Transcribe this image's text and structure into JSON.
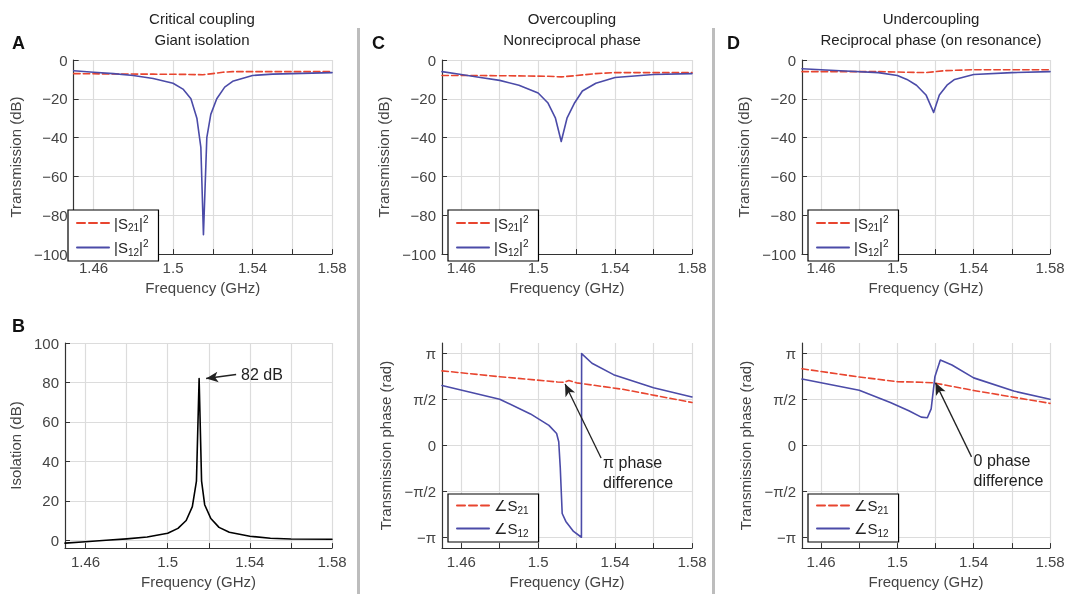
{
  "chart_data": [
    {
      "type": "line",
      "title": "Critical coupling",
      "subtitle": "Giant isolation",
      "annotations": [
        "A"
      ],
      "xlabel": "Frequency (GHz)",
      "ylabel": "Transmission (dB)",
      "xlim": [
        1.45,
        1.58
      ],
      "xticks": [
        1.46,
        {
          "value": 1.48,
          "label": null
        },
        1.5,
        {
          "value": 1.52,
          "label": null
        },
        1.54,
        {
          "value": 1.56,
          "label": null
        },
        1.58
      ],
      "ylim": [
        -100,
        0
      ],
      "yticks": [
        {
          "value": -100,
          "label": "−100"
        },
        {
          "value": -80,
          "label": "−80"
        },
        {
          "value": -60,
          "label": "−60"
        },
        {
          "value": -40,
          "label": "−40"
        },
        {
          "value": -20,
          "label": "−20"
        },
        0
      ],
      "grid": true,
      "legend": "bottom left",
      "marker": "none",
      "series": [
        {
          "name": "|S$_{21}$|$^{2}$",
          "color": "#e8452f",
          "line_style": "dashed",
          "x": [
            1.45,
            1.47,
            1.49,
            1.505,
            1.515,
            1.52,
            1.525,
            1.53,
            1.55,
            1.58
          ],
          "values": [
            -7,
            -7.2,
            -7.3,
            -7.4,
            -7.6,
            -7,
            -6.3,
            -6,
            -6,
            -6
          ]
        },
        {
          "name": "|S$_{12}$|$^{2}$",
          "color": "#4b4ba8",
          "line_style": "solid",
          "x": [
            1.45,
            1.46,
            1.47,
            1.48,
            1.49,
            1.5,
            1.505,
            1.509,
            1.512,
            1.514,
            1.5153,
            1.517,
            1.519,
            1.522,
            1.526,
            1.53,
            1.54,
            1.55,
            1.56,
            1.58
          ],
          "values": [
            -5.5,
            -6.3,
            -7,
            -8,
            -9.5,
            -12,
            -15,
            -20,
            -30,
            -45,
            -90,
            -40,
            -28,
            -20,
            -14,
            -11,
            -8,
            -7.3,
            -7,
            -6.5
          ]
        }
      ]
    },
    {
      "type": "line",
      "annotations": [
        "B",
        {
          "text": "82 dB",
          "x": 1.5153,
          "y": 82
        }
      ],
      "xlabel": "Frequency (GHz)",
      "ylabel": "Isolation (dB)",
      "xlim": [
        1.45,
        1.58
      ],
      "xticks": [
        1.46,
        {
          "value": 1.48,
          "label": null
        },
        1.5,
        {
          "value": 1.52,
          "label": null
        },
        1.54,
        {
          "value": 1.56,
          "label": null
        },
        1.58
      ],
      "ylim": [
        -4,
        100
      ],
      "yticks": [
        0,
        20,
        40,
        60,
        80,
        100
      ],
      "grid": true,
      "marker": "none",
      "series": [
        {
          "color": "#000000",
          "line_style": "solid",
          "x": [
            1.45,
            1.46,
            1.47,
            1.48,
            1.49,
            1.5,
            1.505,
            1.509,
            1.512,
            1.514,
            1.5153,
            1.5165,
            1.518,
            1.521,
            1.525,
            1.53,
            1.54,
            1.55,
            1.56,
            1.58
          ],
          "values": [
            -1.5,
            -0.8,
            0,
            0.7,
            1.6,
            3.5,
            6,
            10,
            17,
            30,
            82,
            30,
            18,
            11,
            6.5,
            4,
            2,
            1,
            0.6,
            0.5
          ]
        }
      ]
    },
    {
      "type": "line",
      "title": "Overcoupling",
      "subtitle": "Nonreciprocal phase",
      "annotations": [
        "C"
      ],
      "xlabel": "Frequency (GHz)",
      "ylabel": "Transmission (dB)",
      "xlim": [
        1.45,
        1.58
      ],
      "xticks": [
        1.46,
        {
          "value": 1.48,
          "label": null
        },
        1.5,
        {
          "value": 1.52,
          "label": null
        },
        1.54,
        {
          "value": 1.56,
          "label": null
        },
        1.58
      ],
      "ylim": [
        -100,
        0
      ],
      "yticks": [
        {
          "value": -100,
          "label": "−100"
        },
        {
          "value": -80,
          "label": "−80"
        },
        {
          "value": -60,
          "label": "−60"
        },
        {
          "value": -40,
          "label": "−40"
        },
        {
          "value": -20,
          "label": "−20"
        },
        0
      ],
      "grid": true,
      "legend": "bottom left",
      "marker": "none",
      "series": [
        {
          "name": "|S$_{21}$|$^{2}$",
          "color": "#e8452f",
          "line_style": "dashed",
          "x": [
            1.45,
            1.47,
            1.49,
            1.505,
            1.512,
            1.52,
            1.53,
            1.54,
            1.56,
            1.58
          ],
          "values": [
            -8,
            -8,
            -8.2,
            -8.4,
            -8.7,
            -8,
            -7,
            -6.5,
            -6.5,
            -6.5
          ]
        },
        {
          "name": "|S$_{12}$|$^{2}$",
          "color": "#4b4ba8",
          "line_style": "solid",
          "x": [
            1.45,
            1.46,
            1.47,
            1.48,
            1.49,
            1.5,
            1.505,
            1.509,
            1.512,
            1.515,
            1.519,
            1.523,
            1.53,
            1.54,
            1.56,
            1.58
          ],
          "values": [
            -6,
            -7.5,
            -9,
            -10.5,
            -13,
            -17,
            -22,
            -30,
            -42,
            -30,
            -22,
            -16,
            -12,
            -9,
            -7.5,
            -7
          ]
        }
      ]
    },
    {
      "type": "line",
      "annotations": [
        {
          "text": "π phase difference",
          "x": 1.514,
          "y": 2.1
        }
      ],
      "xlabel": "Frequency (GHz)",
      "ylabel": "Transmission phase (rad)",
      "xlim": [
        1.45,
        1.58
      ],
      "xticks": [
        1.46,
        {
          "value": 1.48,
          "label": null
        },
        1.5,
        {
          "value": 1.52,
          "label": null
        },
        1.54,
        {
          "value": 1.56,
          "label": null
        },
        1.58
      ],
      "ylim": [
        -3.5,
        3.5
      ],
      "yticks": [
        {
          "value": -3.1416,
          "label": "−π"
        },
        {
          "value": -1.5708,
          "label": "−π/2"
        },
        0,
        {
          "value": 1.5708,
          "label": "π/2"
        },
        {
          "value": 3.1416,
          "label": "π"
        }
      ],
      "grid": true,
      "legend": "bottom left",
      "marker": "none",
      "series": [
        {
          "name": "∠S$_{21}$",
          "color": "#e8452f",
          "line_style": "dashed",
          "x": [
            1.45,
            1.48,
            1.51,
            1.5136,
            1.516,
            1.52,
            1.544,
            1.58
          ],
          "values": [
            2.55,
            2.35,
            2.17,
            2.16,
            2.22,
            2.14,
            1.92,
            1.47
          ]
        },
        {
          "name": "∠S$_{12}$",
          "color": "#4b4ba8",
          "line_style": "solid",
          "x": [
            1.45,
            1.48,
            1.496,
            1.5056,
            1.5096,
            1.5107,
            1.5115,
            1.5125,
            1.5144,
            1.5184,
            1.5225,
            1.5226,
            1.528,
            1.5392,
            1.56,
            1.58
          ],
          "values": [
            2.05,
            1.58,
            1.08,
            0.69,
            0.41,
            0.13,
            -0.76,
            -2.32,
            -2.59,
            -2.93,
            -3.13,
            3.14,
            2.81,
            2.42,
            1.97,
            1.66
          ]
        }
      ]
    },
    {
      "type": "line",
      "title": "Undercoupling",
      "subtitle": "Reciprocal phase (on resonance)",
      "annotations": [
        "D"
      ],
      "xlabel": "Frequency (GHz)",
      "ylabel": "Transmission (dB)",
      "xlim": [
        1.45,
        1.58
      ],
      "xticks": [
        1.46,
        {
          "value": 1.48,
          "label": null
        },
        1.5,
        {
          "value": 1.52,
          "label": null
        },
        1.54,
        {
          "value": 1.56,
          "label": null
        },
        1.58
      ],
      "ylim": [
        -100,
        0
      ],
      "yticks": [
        {
          "value": -100,
          "label": "−100"
        },
        {
          "value": -80,
          "label": "−80"
        },
        {
          "value": -60,
          "label": "−60"
        },
        {
          "value": -40,
          "label": "−40"
        },
        {
          "value": -20,
          "label": "−20"
        },
        0
      ],
      "grid": true,
      "legend": "bottom left",
      "marker": "none",
      "series": [
        {
          "name": "|S$_{21}$|$^{2}$",
          "color": "#e8452f",
          "line_style": "dashed",
          "x": [
            1.45,
            1.49,
            1.505,
            1.515,
            1.52,
            1.525,
            1.54,
            1.58
          ],
          "values": [
            -6,
            -6,
            -6.3,
            -6.5,
            -6,
            -5.5,
            -5,
            -5
          ]
        },
        {
          "name": "|S$_{12}$|$^{2}$",
          "color": "#4b4ba8",
          "line_style": "solid",
          "x": [
            1.45,
            1.47,
            1.49,
            1.5,
            1.505,
            1.51,
            1.515,
            1.519,
            1.522,
            1.526,
            1.53,
            1.54,
            1.56,
            1.58
          ],
          "values": [
            -4.5,
            -5.5,
            -6.5,
            -8,
            -10,
            -13,
            -18,
            -27,
            -18,
            -13,
            -10,
            -7.5,
            -6.5,
            -6
          ]
        }
      ]
    },
    {
      "type": "line",
      "annotations": [
        {
          "text": "0 phase difference",
          "x": 1.52,
          "y": 2.14
        }
      ],
      "xlabel": "Frequency (GHz)",
      "ylabel": "Transmission phase (rad)",
      "xlim": [
        1.45,
        1.58
      ],
      "xticks": [
        1.46,
        {
          "value": 1.48,
          "label": null
        },
        1.5,
        {
          "value": 1.52,
          "label": null
        },
        1.54,
        {
          "value": 1.56,
          "label": null
        },
        1.58
      ],
      "ylim": [
        -3.5,
        3.5
      ],
      "yticks": [
        {
          "value": -3.1416,
          "label": "−π"
        },
        {
          "value": -1.5708,
          "label": "−π/2"
        },
        0,
        {
          "value": 1.5708,
          "label": "π/2"
        },
        {
          "value": 3.1416,
          "label": "π"
        }
      ],
      "grid": true,
      "legend": "bottom left",
      "marker": "none",
      "series": [
        {
          "name": "∠S$_{21}$",
          "color": "#e8452f",
          "line_style": "dashed",
          "x": [
            1.45,
            1.48,
            1.5,
            1.5125,
            1.519,
            1.54,
            1.58
          ],
          "values": [
            2.62,
            2.34,
            2.18,
            2.16,
            2.14,
            1.88,
            1.44
          ]
        },
        {
          "name": "∠S$_{12}$",
          "color": "#4b4ba8",
          "line_style": "solid",
          "x": [
            1.45,
            1.48,
            1.4963,
            1.506,
            1.5125,
            1.5157,
            1.5177,
            1.5197,
            1.5225,
            1.5286,
            1.54,
            1.561,
            1.58
          ],
          "values": [
            2.27,
            1.89,
            1.47,
            1.19,
            0.97,
            0.95,
            1.25,
            2.36,
            2.92,
            2.75,
            2.31,
            1.86,
            1.58
          ]
        }
      ]
    }
  ]
}
